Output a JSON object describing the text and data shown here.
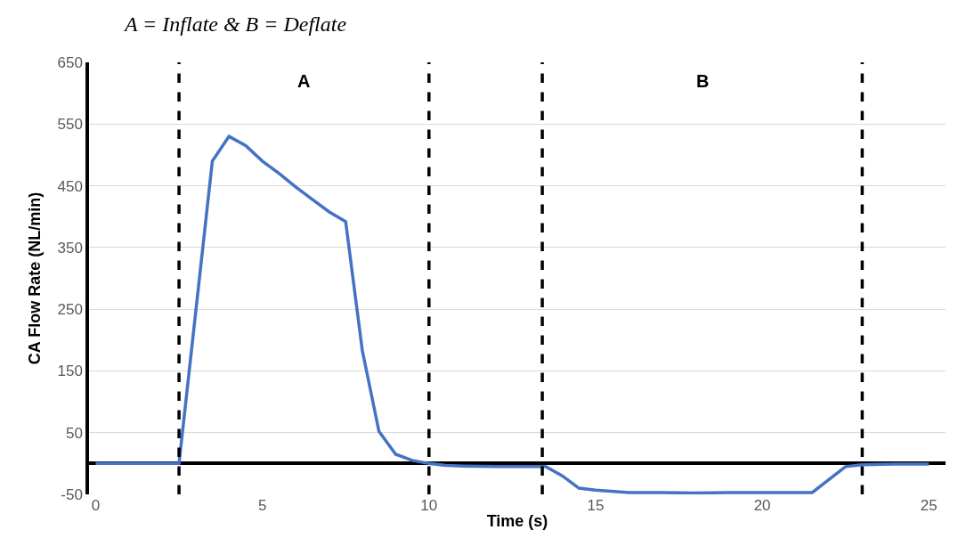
{
  "chart_data": {
    "type": "line",
    "title": "A = Inflate & B = Deflate",
    "xlabel": "Time (s)",
    "ylabel": "CA Flow Rate (NL/min)",
    "x": [
      0,
      0.5,
      1,
      1.5,
      2,
      2.5,
      3.5,
      4,
      4.5,
      5,
      5.5,
      6,
      6.5,
      7,
      7.5,
      8,
      8.5,
      9,
      9.5,
      10,
      10.5,
      11,
      12,
      13,
      13.5,
      14,
      14.5,
      15,
      16,
      17,
      18,
      19,
      20,
      21,
      21.5,
      22.5,
      23,
      24,
      25
    ],
    "series": [
      {
        "color": "#4472c4",
        "values": [
          0,
          0,
          0,
          0,
          0,
          0,
          490,
          530,
          515,
          490,
          470,
          448,
          428,
          408,
          392,
          183,
          52,
          15,
          5,
          0,
          -3,
          -4,
          -5,
          -5,
          -5,
          -20,
          -40,
          -43,
          -47,
          -47,
          -48,
          -47,
          -47,
          -47,
          -47,
          -5,
          -2,
          -1,
          -1
        ]
      }
    ],
    "xlim": [
      -0.2,
      25.5
    ],
    "xticks": [
      0,
      5,
      10,
      15,
      20,
      25
    ],
    "ylim": [
      -50,
      650
    ],
    "yticks": [
      -50,
      50,
      150,
      250,
      350,
      450,
      550,
      650
    ],
    "grid": "y",
    "marker": "none",
    "line_style": "solid",
    "ref_lines": [
      {
        "axis": "x",
        "value": 2.5,
        "line_style": "dashed",
        "color": "#000000"
      },
      {
        "axis": "x",
        "value": 10,
        "line_style": "dashed",
        "color": "#000000"
      },
      {
        "axis": "x",
        "value": 13.4,
        "line_style": "dashed",
        "color": "#000000"
      },
      {
        "axis": "x",
        "value": 23,
        "line_style": "dashed",
        "color": "#000000"
      }
    ],
    "annotations": [
      "A",
      "B"
    ]
  }
}
